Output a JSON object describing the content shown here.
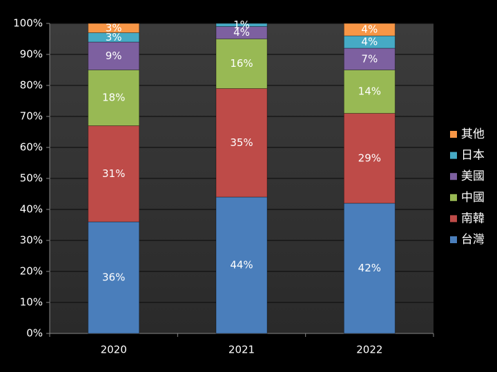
{
  "chart_data": {
    "type": "stacked_bar_100",
    "categories": [
      "2020",
      "2021",
      "2022"
    ],
    "series": [
      {
        "name": "台灣",
        "color": "#4a7ebb",
        "values": [
          36,
          44,
          42
        ],
        "value_labels": [
          "36%",
          "44%",
          "42%"
        ]
      },
      {
        "name": "南韓",
        "color": "#be4b48",
        "values": [
          31,
          35,
          29
        ],
        "value_labels": [
          "31%",
          "35%",
          "29%"
        ]
      },
      {
        "name": "中國",
        "color": "#98b954",
        "values": [
          18,
          16,
          14
        ],
        "value_labels": [
          "18%",
          "16%",
          "14%"
        ]
      },
      {
        "name": "美國",
        "color": "#7d60a0",
        "values": [
          9,
          4,
          7
        ],
        "value_labels": [
          "9%",
          "4%",
          "7%"
        ]
      },
      {
        "name": "日本",
        "color": "#46aac5",
        "values": [
          3,
          1,
          4
        ],
        "value_labels": [
          "3%",
          "1%",
          "4%"
        ]
      },
      {
        "name": "其他",
        "color": "#f79646",
        "values": [
          3,
          0,
          4
        ],
        "value_labels": [
          "3%",
          null,
          "4%"
        ]
      }
    ],
    "ylim": [
      0,
      100
    ],
    "yticks": [
      {
        "value": 0,
        "label": "0%"
      },
      {
        "value": 10,
        "label": "10%"
      },
      {
        "value": 20,
        "label": "20%"
      },
      {
        "value": 30,
        "label": "30%"
      },
      {
        "value": 40,
        "label": "40%"
      },
      {
        "value": 50,
        "label": "50%"
      },
      {
        "value": 60,
        "label": "60%"
      },
      {
        "value": 70,
        "label": "70%"
      },
      {
        "value": 80,
        "label": "80%"
      },
      {
        "value": 90,
        "label": "90%"
      },
      {
        "value": 100,
        "label": "100%"
      }
    ],
    "grid": true,
    "legend": "right"
  }
}
